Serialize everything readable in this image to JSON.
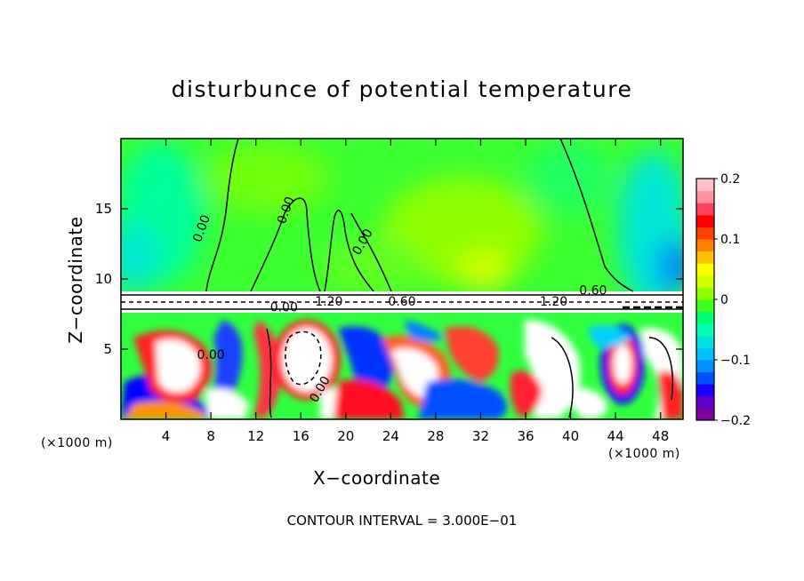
{
  "chart_data": {
    "type": "heatmap",
    "title": "disturbunce of potential temperature",
    "xlabel": "X−coordinate",
    "ylabel": "Z−coordinate",
    "x_unit": "(×1000 m)",
    "x_unit_right": "(×1000 m)",
    "xlim": [
      0,
      50
    ],
    "ylim": [
      0,
      20
    ],
    "x_ticks": [
      4,
      8,
      12,
      16,
      20,
      24,
      28,
      32,
      36,
      40,
      44,
      48
    ],
    "y_ticks": [
      5,
      10,
      15
    ],
    "colorbar": {
      "range": [
        -0.2,
        0.2
      ],
      "tick_values": [
        -0.2,
        -0.1,
        0,
        0.1,
        0.2
      ],
      "tick_labels": [
        "−0.2",
        "−0.1",
        "0",
        "0.1",
        "0.2"
      ],
      "colors": [
        "#8000a0",
        "#6000c8",
        "#1a00ff",
        "#0050ff",
        "#0090ff",
        "#00c0ff",
        "#00e0e0",
        "#00ffb0",
        "#00ff70",
        "#40ff20",
        "#90ff00",
        "#d0ff00",
        "#ffff00",
        "#ffc000",
        "#ff8000",
        "#ff4000",
        "#ff0000",
        "#ff4060",
        "#ff90a0",
        "#ffc0c8"
      ]
    },
    "contour_labels": [
      {
        "text": "0.00",
        "x": 7.5,
        "z": 13.5,
        "angle": -70
      },
      {
        "text": "0.00",
        "x": 15.0,
        "z": 14.8,
        "angle": -70
      },
      {
        "text": "0.00",
        "x": 21.8,
        "z": 12.5,
        "angle": -60
      },
      {
        "text": "0.00",
        "x": 8.0,
        "z": 4.3,
        "angle": 0
      },
      {
        "text": "0.00",
        "x": 14.5,
        "z": 7.7,
        "angle": 0
      },
      {
        "text": "0.00",
        "x": 18.0,
        "z": 2.0,
        "angle": -60
      },
      {
        "text": "1.20",
        "x": 18.5,
        "z": 8.1,
        "angle": 0
      },
      {
        "text": "1.20",
        "x": 38.5,
        "z": 8.1,
        "angle": 0
      },
      {
        "text": "0.60",
        "x": 42.0,
        "z": 8.9,
        "angle": 0
      },
      {
        "text": "0.60",
        "x": 25.0,
        "z": 8.1,
        "angle": 0
      }
    ],
    "contour_interval": "CONTOUR INTERVAL = 3.000E−01"
  }
}
